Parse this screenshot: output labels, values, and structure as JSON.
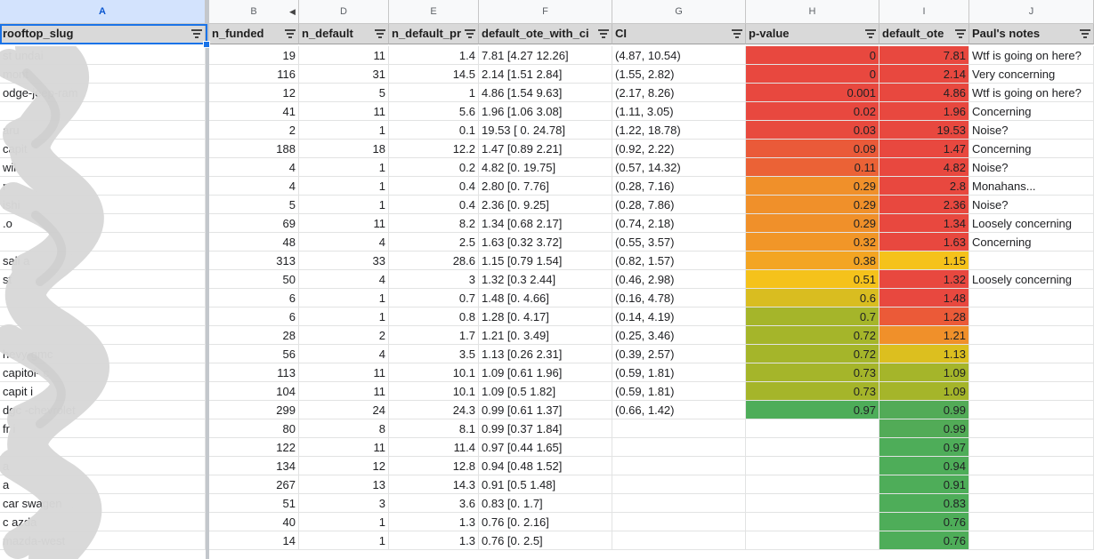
{
  "columns": [
    {
      "letter": "A",
      "header": "rooftop_slug"
    },
    {
      "letter": "B",
      "header": "n_funded"
    },
    {
      "letter": "D",
      "header": "n_default"
    },
    {
      "letter": "E",
      "header": "n_default_pr"
    },
    {
      "letter": "F",
      "header": "default_ote_with_ci"
    },
    {
      "letter": "G",
      "header": "CI"
    },
    {
      "letter": "H",
      "header": "p-value"
    },
    {
      "letter": "I",
      "header": "default_ote"
    },
    {
      "letter": "J",
      "header": "Paul's notes"
    }
  ],
  "selected_column": "A",
  "icons": {
    "filter": "filter-icon",
    "hidden_columns": "hidden-columns-arrows-icon",
    "redaction": "redaction-scribble-icon"
  },
  "colors": {
    "red": "#e8483f",
    "orange": "#f0902a",
    "yellow": "#f5c21b",
    "olive": "#a5b52a",
    "green": "#4ead59"
  },
  "rows": [
    {
      "a": "st          undai",
      "b": "19",
      "d": "11",
      "e": "1.4",
      "f": "7.81 [4.27 12.26]",
      "g": "(4.87, 10.54)",
      "h": "0",
      "i": "7.81",
      "j": "Wtf is going on here?",
      "hc": "#e8483f",
      "ic": "#e8483f"
    },
    {
      "a": "         mont",
      "b": "116",
      "d": "31",
      "e": "14.5",
      "f": "2.14 [1.51 2.84]",
      "g": "(1.55, 2.82)",
      "h": "0",
      "i": "2.14",
      "j": "Very concerning",
      "hc": "#e8483f",
      "ic": "#e8483f"
    },
    {
      "a": "                   odge-jeep-ram",
      "b": "12",
      "d": "5",
      "e": "1",
      "f": "4.86 [1.54 9.63]",
      "g": "(2.17, 8.26)",
      "h": "0.001",
      "i": "4.86",
      "j": "Wtf is going on here?",
      "hc": "#e8483f",
      "ic": "#e8483f"
    },
    {
      "a": "",
      "b": "41",
      "d": "11",
      "e": "5.6",
      "f": "1.96 [1.06 3.08]",
      "g": "(1.11, 3.05)",
      "h": "0.02",
      "i": "1.96",
      "j": "Concerning",
      "hc": "#e8483f",
      "ic": "#e8483f"
    },
    {
      "a": "                       aru",
      "b": "2",
      "d": "1",
      "e": "0.1",
      "f": "19.53 [ 0. 24.78]",
      "g": "(1.22, 18.78)",
      "h": "0.03",
      "i": "19.53",
      "j": "Noise?",
      "hc": "#e84a3e",
      "ic": "#e8483f"
    },
    {
      "a": "capit",
      "b": "188",
      "d": "18",
      "e": "12.2",
      "f": "1.47 [0.89 2.21]",
      "g": "(0.92, 2.22)",
      "h": "0.09",
      "i": "1.47",
      "j": "Concerning",
      "hc": "#ea5a39",
      "ic": "#e8483f"
    },
    {
      "a": "wil",
      "b": "4",
      "d": "1",
      "e": "0.2",
      "f": "4.82 [0. 19.75]",
      "g": "(0.57, 14.32)",
      "h": "0.11",
      "i": "4.82",
      "j": "Noise?",
      "hc": "#eb6236",
      "ic": "#e8483f"
    },
    {
      "a": "r",
      "b": "4",
      "d": "1",
      "e": "0.4",
      "f": "2.80 [0. 7.76]",
      "g": "(0.28, 7.16)",
      "h": "0.29",
      "i": "2.8",
      "j": "Monahans...",
      "hc": "#f0902a",
      "ic": "#e8483f"
    },
    {
      "a": "                   ishi",
      "b": "5",
      "d": "1",
      "e": "0.4",
      "f": "2.36 [0. 9.25]",
      "g": "(0.28, 7.86)",
      "h": "0.29",
      "i": "2.36",
      "j": "Noise?",
      "hc": "#f0902a",
      "ic": "#e8483f"
    },
    {
      "a": "                  .o",
      "b": "69",
      "d": "11",
      "e": "8.2",
      "f": "1.34 [0.68 2.17]",
      "g": "(0.74, 2.18)",
      "h": "0.29",
      "i": "1.34",
      "j": "Loosely concerning",
      "hc": "#f0902a",
      "ic": "#e8483f"
    },
    {
      "a": "",
      "b": "48",
      "d": "4",
      "e": "2.5",
      "f": "1.63 [0.32 3.72]",
      "g": "(0.55, 3.57)",
      "h": "0.32",
      "i": "1.63",
      "j": "Concerning",
      "hc": "#f19628",
      "ic": "#e8483f"
    },
    {
      "a": "sali           a",
      "b": "313",
      "d": "33",
      "e": "28.6",
      "f": "1.15 [0.79 1.54]",
      "g": "(0.82, 1.57)",
      "h": "0.38",
      "i": "1.15",
      "j": "",
      "hc": "#f3a523",
      "ic": "#f5c21b"
    },
    {
      "a": "st",
      "b": "50",
      "d": "4",
      "e": "3",
      "f": "1.32 [0.3 2.44]",
      "g": "(0.46, 2.98)",
      "h": "0.51",
      "i": "1.32",
      "j": "Loosely concerning",
      "hc": "#f5c21b",
      "ic": "#e8483f"
    },
    {
      "a": "",
      "b": "6",
      "d": "1",
      "e": "0.7",
      "f": "1.48 [0. 4.66]",
      "g": "(0.16, 4.78)",
      "h": "0.6",
      "i": "1.48",
      "j": "",
      "hc": "#d9bd20",
      "ic": "#e8483f"
    },
    {
      "a": "",
      "b": "6",
      "d": "1",
      "e": "0.8",
      "f": "1.28 [0. 4.17]",
      "g": "(0.14, 4.19)",
      "h": "0.7",
      "i": "1.28",
      "j": "",
      "hc": "#a5b52a",
      "ic": "#eb5a38"
    },
    {
      "a": "",
      "b": "28",
      "d": "2",
      "e": "1.7",
      "f": "1.21 [0. 3.49]",
      "g": "(0.25, 3.46)",
      "h": "0.72",
      "i": "1.21",
      "j": "",
      "hc": "#a5b52a",
      "ic": "#f0902a"
    },
    {
      "a": "            hevy-gmc",
      "b": "56",
      "d": "4",
      "e": "3.5",
      "f": "1.13 [0.26 2.31]",
      "g": "(0.39, 2.57)",
      "h": "0.72",
      "i": "1.13",
      "j": "",
      "hc": "#a5b52a",
      "ic": "#dcbf1f"
    },
    {
      "a": "capitol-         c",
      "b": "113",
      "d": "11",
      "e": "10.1",
      "f": "1.09 [0.61 1.96]",
      "g": "(0.59, 1.81)",
      "h": "0.73",
      "i": "1.09",
      "j": "",
      "hc": "#a5b52a",
      "ic": "#a5b52a"
    },
    {
      "a": "capit          i",
      "b": "104",
      "d": "11",
      "e": "10.1",
      "f": "1.09 [0.5 1.82]",
      "g": "(0.59, 1.81)",
      "h": "0.73",
      "i": "1.09",
      "j": "",
      "hc": "#a5b52a",
      "ic": "#a5b52a"
    },
    {
      "a": "dgc           -chevrolet",
      "b": "299",
      "d": "24",
      "e": "24.3",
      "f": "0.99 [0.61 1.37]",
      "g": "(0.66, 1.42)",
      "h": "0.97",
      "i": "0.99",
      "j": "",
      "hc": "#4ead59",
      "ic": "#52ab57"
    },
    {
      "a": "fr          i",
      "b": "80",
      "d": "8",
      "e": "8.1",
      "f": "0.99 [0.37 1.84]",
      "g": "",
      "h": "",
      "i": "0.99",
      "j": "",
      "hc": "",
      "ic": "#52ab57"
    },
    {
      "a": "",
      "b": "122",
      "d": "11",
      "e": "11.4",
      "f": "0.97 [0.44 1.65]",
      "g": "",
      "h": "",
      "i": "0.97",
      "j": "",
      "hc": "",
      "ic": "#4ead59"
    },
    {
      "a": "            a",
      "b": "134",
      "d": "12",
      "e": "12.8",
      "f": "0.94 [0.48 1.52]",
      "g": "",
      "h": "",
      "i": "0.94",
      "j": "",
      "hc": "",
      "ic": "#4ead59"
    },
    {
      "a": "            a",
      "b": "267",
      "d": "13",
      "e": "14.3",
      "f": "0.91 [0.5 1.48]",
      "g": "",
      "h": "",
      "i": "0.91",
      "j": "",
      "hc": "",
      "ic": "#4ead59"
    },
    {
      "a": "car        swagen",
      "b": "51",
      "d": "3",
      "e": "3.6",
      "f": "0.83 [0. 1.7]",
      "g": "",
      "h": "",
      "i": "0.83",
      "j": "",
      "hc": "",
      "ic": "#4ead59"
    },
    {
      "a": "c          azda",
      "b": "40",
      "d": "1",
      "e": "1.3",
      "f": "0.76 [0. 2.16]",
      "g": "",
      "h": "",
      "i": "0.76",
      "j": "",
      "hc": "",
      "ic": "#4ead59"
    },
    {
      "a": "           mazda-west",
      "b": "14",
      "d": "1",
      "e": "1.3",
      "f": "0.76 [0. 2.5]",
      "g": "",
      "h": "",
      "i": "0.76",
      "j": "",
      "hc": "",
      "ic": "#4ead59"
    }
  ]
}
